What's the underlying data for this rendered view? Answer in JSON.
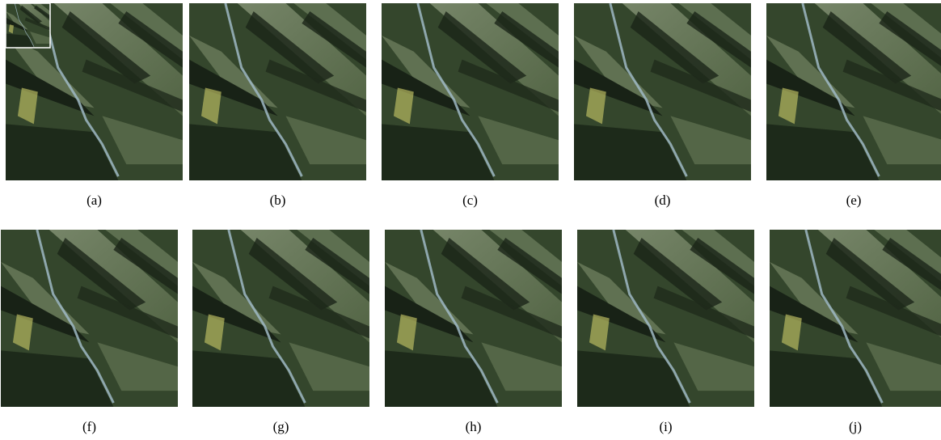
{
  "figure": {
    "captions": [
      "(a)",
      "(b)",
      "(c)",
      "(d)",
      "(e)",
      "(f)",
      "(g)",
      "(h)",
      "(i)",
      "(j)"
    ]
  }
}
